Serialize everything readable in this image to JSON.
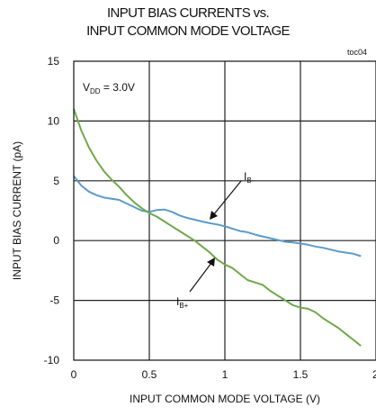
{
  "chart_data": {
    "type": "line",
    "title_line1": "INPUT BIAS CURRENTS vs.",
    "title_line2": "INPUT COMMON MODE VOLTAGE",
    "figure_id": "toc04",
    "xlabel": "INPUT COMMON MODE VOLTAGE (V)",
    "ylabel": "INPUT BIAS CURRENT (pA)",
    "xlim": [
      0,
      2
    ],
    "ylim": [
      -10,
      15
    ],
    "x_ticks": [
      0,
      0.5,
      1,
      1.5,
      2
    ],
    "x_tick_labels": [
      "0",
      "0.5",
      "1",
      "1.5",
      "2"
    ],
    "y_ticks": [
      -10,
      -5,
      0,
      5,
      10,
      15
    ],
    "y_tick_labels": [
      "-10",
      "-5",
      "0",
      "5",
      "10",
      "15"
    ],
    "grid": true,
    "condition": {
      "prefix": "V",
      "sub": "DD",
      "suffix": " = 3.0V"
    },
    "series": [
      {
        "name": "IB-",
        "label_main": "I",
        "label_sub": "B-",
        "color": "#5b9bc9",
        "points": [
          [
            0.0,
            5.4
          ],
          [
            0.05,
            4.6
          ],
          [
            0.1,
            4.1
          ],
          [
            0.15,
            3.8
          ],
          [
            0.2,
            3.6
          ],
          [
            0.25,
            3.5
          ],
          [
            0.3,
            3.4
          ],
          [
            0.35,
            3.1
          ],
          [
            0.4,
            2.8
          ],
          [
            0.45,
            2.5
          ],
          [
            0.5,
            2.4
          ],
          [
            0.55,
            2.55
          ],
          [
            0.6,
            2.6
          ],
          [
            0.65,
            2.4
          ],
          [
            0.7,
            2.1
          ],
          [
            0.75,
            1.9
          ],
          [
            0.8,
            1.75
          ],
          [
            0.85,
            1.6
          ],
          [
            0.9,
            1.45
          ],
          [
            0.95,
            1.35
          ],
          [
            1.0,
            1.2
          ],
          [
            1.05,
            1.0
          ],
          [
            1.1,
            0.8
          ],
          [
            1.15,
            0.7
          ],
          [
            1.2,
            0.5
          ],
          [
            1.25,
            0.35
          ],
          [
            1.3,
            0.2
          ],
          [
            1.35,
            0.05
          ],
          [
            1.4,
            -0.1
          ],
          [
            1.45,
            -0.15
          ],
          [
            1.5,
            -0.25
          ],
          [
            1.55,
            -0.35
          ],
          [
            1.6,
            -0.5
          ],
          [
            1.65,
            -0.6
          ],
          [
            1.7,
            -0.75
          ],
          [
            1.75,
            -0.9
          ],
          [
            1.8,
            -1.0
          ],
          [
            1.85,
            -1.1
          ],
          [
            1.9,
            -1.3
          ]
        ]
      },
      {
        "name": "IB+",
        "label_main": "I",
        "label_sub": "B+",
        "color": "#70a84a",
        "points": [
          [
            0.0,
            11.0
          ],
          [
            0.05,
            9.2
          ],
          [
            0.1,
            7.8
          ],
          [
            0.15,
            6.7
          ],
          [
            0.2,
            5.8
          ],
          [
            0.25,
            5.1
          ],
          [
            0.3,
            4.5
          ],
          [
            0.35,
            3.8
          ],
          [
            0.4,
            3.2
          ],
          [
            0.45,
            2.7
          ],
          [
            0.5,
            2.3
          ],
          [
            0.55,
            2.0
          ],
          [
            0.6,
            1.6
          ],
          [
            0.65,
            1.2
          ],
          [
            0.7,
            0.8
          ],
          [
            0.75,
            0.4
          ],
          [
            0.8,
            0.0
          ],
          [
            0.85,
            -0.5
          ],
          [
            0.9,
            -1.0
          ],
          [
            0.95,
            -1.6
          ],
          [
            1.0,
            -2.0
          ],
          [
            1.05,
            -2.3
          ],
          [
            1.1,
            -2.8
          ],
          [
            1.15,
            -3.3
          ],
          [
            1.2,
            -3.5
          ],
          [
            1.25,
            -3.7
          ],
          [
            1.3,
            -4.2
          ],
          [
            1.35,
            -4.6
          ],
          [
            1.4,
            -5.0
          ],
          [
            1.45,
            -5.4
          ],
          [
            1.5,
            -5.6
          ],
          [
            1.55,
            -5.7
          ],
          [
            1.6,
            -6.0
          ],
          [
            1.65,
            -6.5
          ],
          [
            1.7,
            -6.9
          ],
          [
            1.75,
            -7.3
          ],
          [
            1.8,
            -7.8
          ],
          [
            1.85,
            -8.3
          ],
          [
            1.9,
            -8.8
          ]
        ]
      }
    ]
  }
}
